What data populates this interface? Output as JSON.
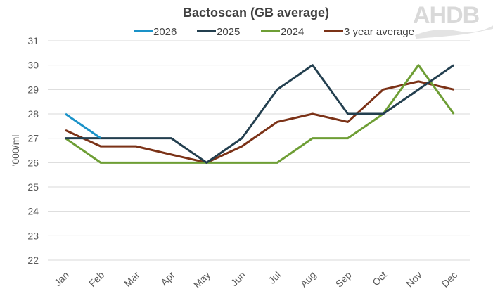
{
  "logo": {
    "text": "AHDB"
  },
  "chart_data": {
    "type": "line",
    "title": "Bactoscan (GB average)",
    "xlabel": "",
    "ylabel": "'000/ml",
    "ylim": [
      22,
      31
    ],
    "yticks": [
      22,
      23,
      24,
      25,
      26,
      27,
      28,
      29,
      30,
      31
    ],
    "grid": true,
    "legend_position": "top",
    "categories": [
      "Jan",
      "Feb",
      "Mar",
      "Apr",
      "May",
      "Jun",
      "Jul",
      "Aug",
      "Sep",
      "Oct",
      "Nov",
      "Dec"
    ],
    "series": [
      {
        "name": "2026",
        "color": "#1a92c8",
        "values": [
          28,
          27,
          null,
          null,
          null,
          null,
          null,
          null,
          null,
          null,
          null,
          null
        ]
      },
      {
        "name": "2025",
        "color": "#233f4f",
        "values": [
          27,
          27,
          27,
          27,
          26,
          27,
          29,
          30,
          28,
          28,
          29,
          30
        ]
      },
      {
        "name": "2024",
        "color": "#6e9e35",
        "values": [
          27,
          26,
          26,
          26,
          26,
          26,
          26,
          27,
          27,
          28,
          30,
          28
        ]
      },
      {
        "name": "3 year average",
        "color": "#7b3217",
        "values": [
          27.33,
          26.67,
          26.67,
          26.33,
          26,
          26.67,
          27.67,
          28,
          27.67,
          29,
          29.33,
          29
        ]
      }
    ]
  }
}
